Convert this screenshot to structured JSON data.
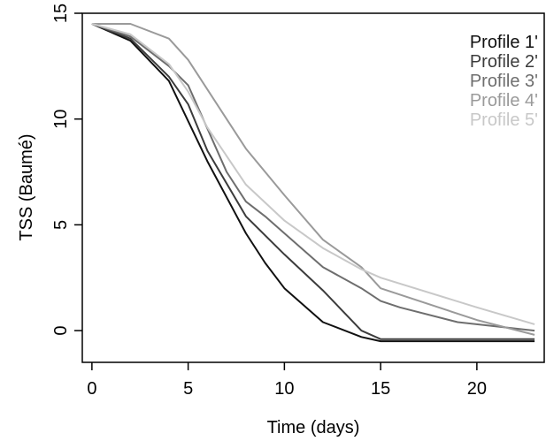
{
  "chart_data": {
    "type": "line",
    "xlabel": "Time (days)",
    "ylabel": "TSS (Baumé)",
    "xlim": [
      -0.5,
      23.5
    ],
    "ylim": [
      -1.5,
      15
    ],
    "x_ticks": [
      0,
      5,
      10,
      15,
      20
    ],
    "y_ticks": [
      0,
      5,
      10,
      15
    ],
    "grid": false,
    "legend": "top-right",
    "series": [
      {
        "name": "Profile 1'",
        "color": "#111111",
        "x": [
          0,
          2,
          4,
          6,
          8,
          9,
          10,
          12,
          14,
          15,
          23
        ],
        "y": [
          14.5,
          13.7,
          11.8,
          8.0,
          4.6,
          3.2,
          2.0,
          0.4,
          -0.3,
          -0.5,
          -0.5
        ]
      },
      {
        "name": "Profile 2'",
        "color": "#3c3c3c",
        "x": [
          0,
          2,
          4,
          5,
          6,
          8,
          10,
          12,
          14,
          15,
          23
        ],
        "y": [
          14.5,
          13.8,
          12.0,
          10.7,
          8.5,
          5.4,
          3.6,
          1.9,
          0.0,
          -0.4,
          -0.4
        ]
      },
      {
        "name": "Profile 3'",
        "color": "#6e6e6e",
        "x": [
          0,
          2,
          4,
          5,
          7,
          8,
          9,
          10,
          12,
          14,
          15,
          16,
          19,
          23
        ],
        "y": [
          14.5,
          13.9,
          12.5,
          11.6,
          7.5,
          6.1,
          5.4,
          4.6,
          3.0,
          2.0,
          1.4,
          1.1,
          0.4,
          0.0
        ]
      },
      {
        "name": "Profile 4'",
        "color": "#9a9a9a",
        "x": [
          0,
          2,
          4,
          5,
          7,
          8,
          10,
          12,
          14,
          15,
          20,
          23
        ],
        "y": [
          14.5,
          14.5,
          13.8,
          12.8,
          10.0,
          8.6,
          6.4,
          4.3,
          3.0,
          2.0,
          0.5,
          -0.2
        ]
      },
      {
        "name": "Profile 5'",
        "color": "#c8c8c8",
        "x": [
          0,
          2,
          4,
          5,
          6,
          8,
          10,
          12,
          14,
          15,
          20,
          23
        ],
        "y": [
          14.5,
          14.0,
          12.6,
          11.3,
          9.6,
          6.9,
          5.2,
          3.9,
          2.9,
          2.5,
          1.1,
          0.3
        ]
      }
    ]
  }
}
